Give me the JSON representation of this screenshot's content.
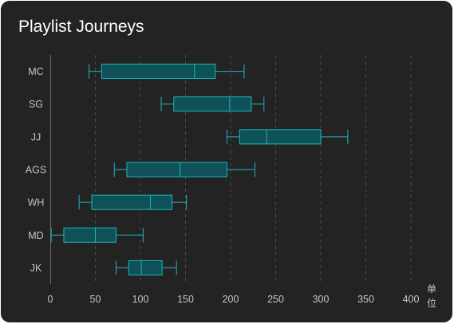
{
  "chart_data": {
    "type": "boxplot",
    "orientation": "horizontal",
    "title": "Playlist Journeys",
    "unit": "单位",
    "xlim": [
      0,
      400
    ],
    "xticks": [
      0,
      50,
      100,
      150,
      200,
      250,
      300,
      350,
      400
    ],
    "grid": "vertical-dashed",
    "colors": {
      "background": "#232323",
      "box_fill": "#0e5157",
      "box_stroke": "#1fb5bf",
      "grid": "#4a4a4a",
      "axis": "#6b6b6b",
      "text": "#c4c4c4",
      "title": "#ffffff"
    },
    "categories": [
      "MC",
      "SG",
      "JJ",
      "AGS",
      "WH",
      "MD",
      "JK"
    ],
    "boxes": [
      {
        "category": "MC",
        "min": 43,
        "q1": 57,
        "median": 160,
        "q3": 183,
        "max": 215
      },
      {
        "category": "SG",
        "min": 123,
        "q1": 137,
        "median": 199,
        "q3": 223,
        "max": 237
      },
      {
        "category": "JJ",
        "min": 196,
        "q1": 210,
        "median": 240,
        "q3": 300,
        "max": 330
      },
      {
        "category": "AGS",
        "min": 71,
        "q1": 85,
        "median": 144,
        "q3": 196,
        "max": 227
      },
      {
        "category": "WH",
        "min": 32,
        "q1": 46,
        "median": 111,
        "q3": 135,
        "max": 151
      },
      {
        "category": "MD",
        "min": 1,
        "q1": 15,
        "median": 50,
        "q3": 73,
        "max": 103
      },
      {
        "category": "JK",
        "min": 73,
        "q1": 87,
        "median": 101,
        "q3": 124,
        "max": 140
      }
    ]
  }
}
